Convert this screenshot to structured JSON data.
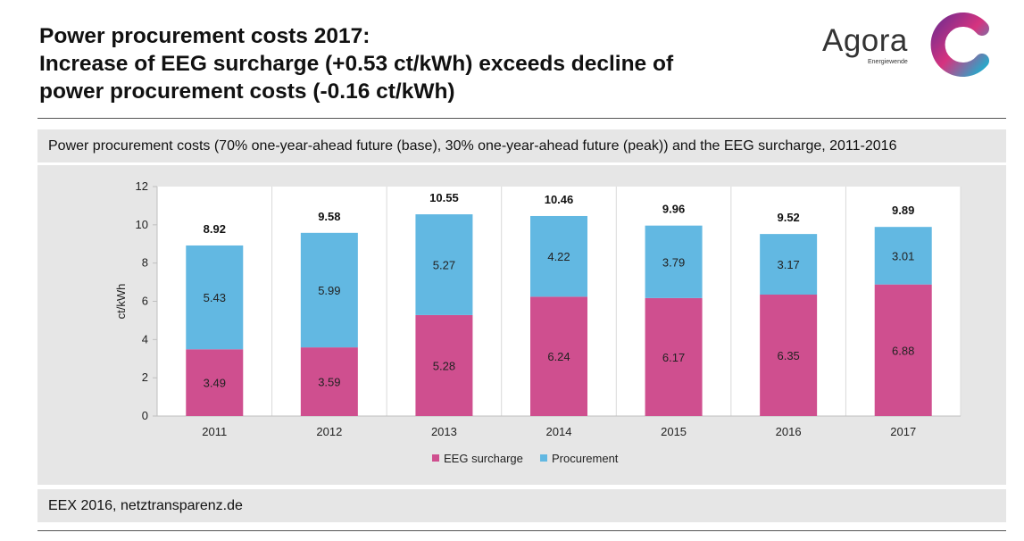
{
  "header": {
    "title_lines": [
      "Power procurement costs 2017:",
      "Increase of EEG surcharge (+0.53 ct/kWh) exceeds decline of",
      "power procurement costs (-0.16 ct/kWh)"
    ]
  },
  "logo": {
    "name": "Agora",
    "sub": "Energiewende",
    "colors": [
      "#7b2d8e",
      "#d6337f",
      "#2aa7c9"
    ]
  },
  "subtitle": "Power procurement costs (70% one-year-ahead future (base), 30% one-year-ahead future (peak)) and the EEG surcharge, 2011-2016",
  "source": "EEX 2016, netztransparenz.de",
  "chart_data": {
    "type": "bar",
    "stacked": true,
    "categories": [
      "2011",
      "2012",
      "2013",
      "2014",
      "2015",
      "2016",
      "2017"
    ],
    "series": [
      {
        "name": "EEG surcharge",
        "color": "#cf4f8f",
        "values": [
          3.49,
          3.59,
          5.28,
          6.24,
          6.17,
          6.35,
          6.88
        ]
      },
      {
        "name": "Procurement",
        "color": "#62b8e2",
        "values": [
          5.43,
          5.99,
          5.27,
          4.22,
          3.79,
          3.17,
          3.01
        ]
      }
    ],
    "totals": [
      "8.92",
      "9.58",
      "10.55",
      "10.46",
      "9.96",
      "9.52",
      "9.89"
    ],
    "ylabel": "ct/kWh",
    "ylim": [
      0,
      12
    ],
    "yticks": [
      "0",
      "2",
      "4",
      "6",
      "8",
      "10",
      "12"
    ],
    "grid": "vertical",
    "legend": "bottom"
  }
}
